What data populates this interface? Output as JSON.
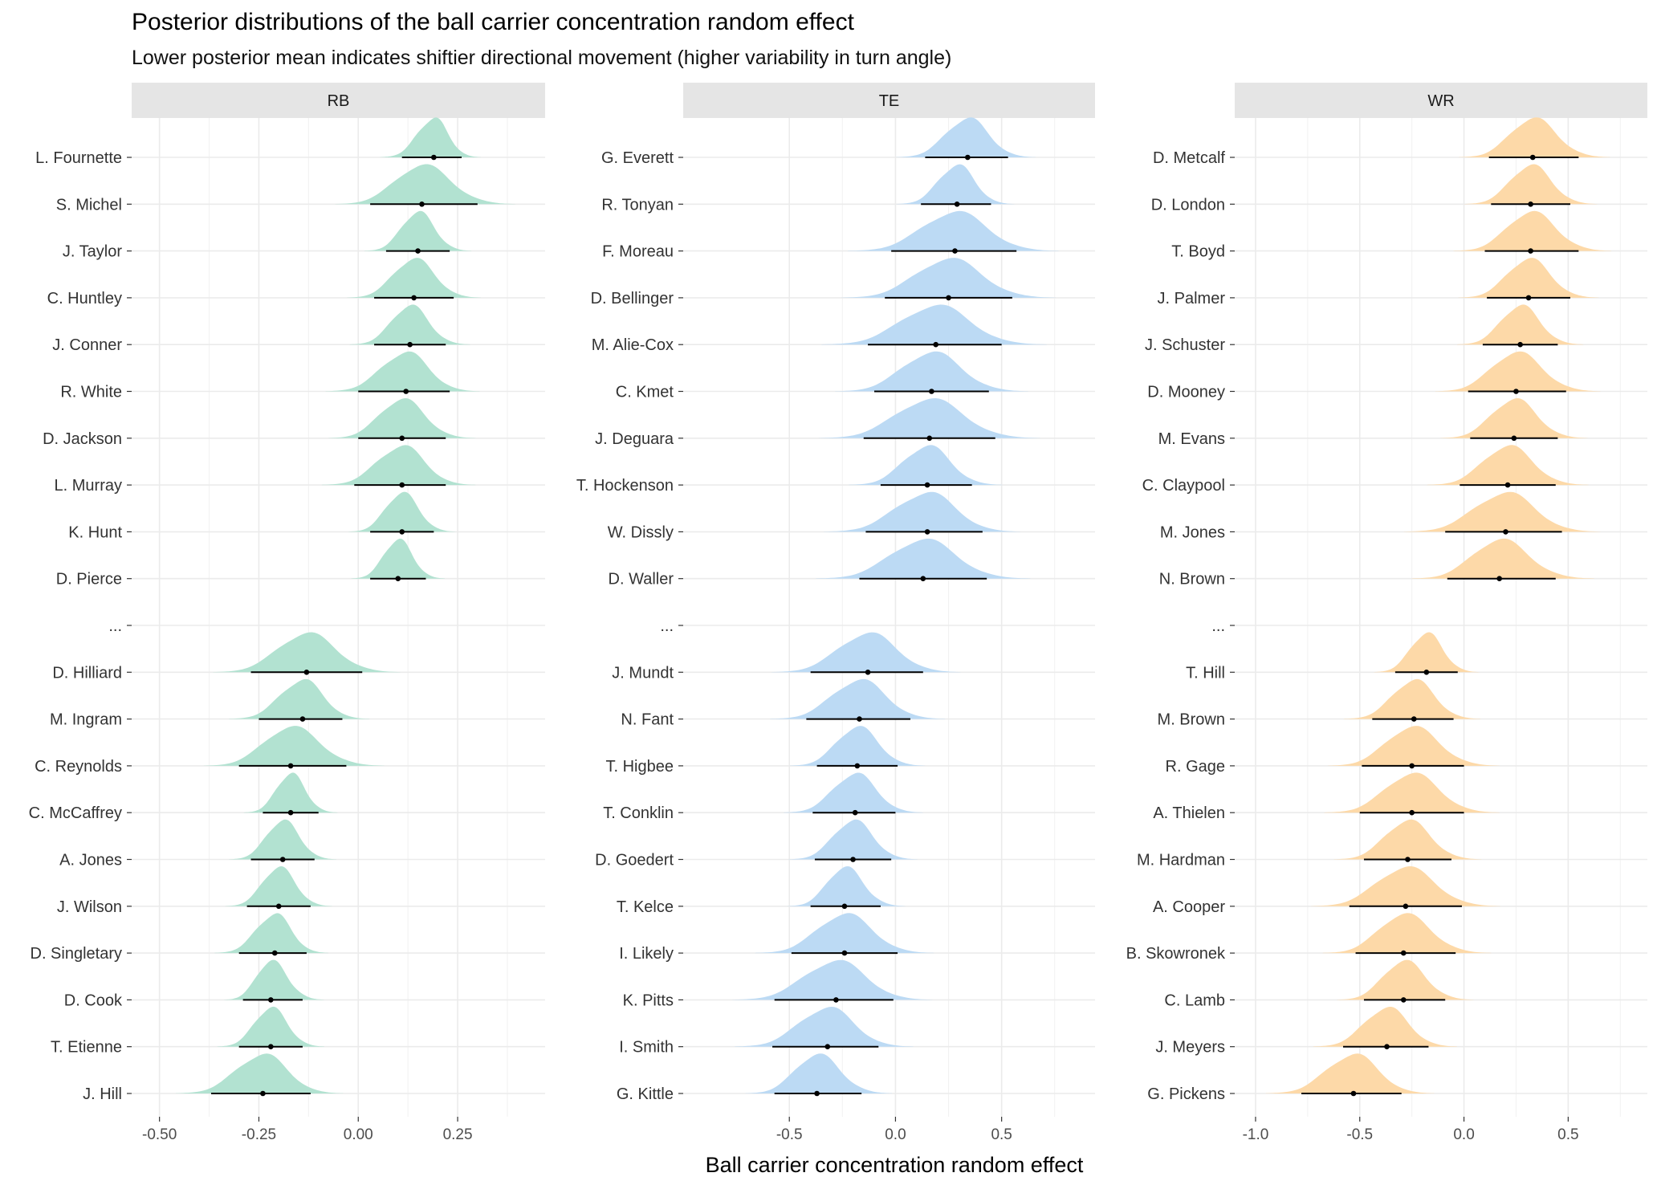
{
  "chart_data": {
    "type": "ridgeline",
    "title": "Posterior distributions of the ball carrier concentration random effect",
    "subtitle": "Lower posterior mean indicates shiftier directional movement (higher variability in turn angle)",
    "xlabel": "Ball carrier concentration random effect",
    "grid": true,
    "panels": [
      {
        "name": "RB",
        "color": "#b2e2d1",
        "xlim": [
          -0.57,
          0.47
        ],
        "xticks": [
          -0.5,
          -0.25,
          0.0,
          0.25
        ],
        "xtick_labels": [
          "-0.50",
          "-0.25",
          "0.00",
          "0.25"
        ],
        "rows": [
          {
            "label": "L. Fournette",
            "mean": 0.19,
            "lo": 0.11,
            "hi": 0.26
          },
          {
            "label": "S. Michel",
            "mean": 0.16,
            "lo": 0.03,
            "hi": 0.3
          },
          {
            "label": "J. Taylor",
            "mean": 0.15,
            "lo": 0.07,
            "hi": 0.23
          },
          {
            "label": "C. Huntley",
            "mean": 0.14,
            "lo": 0.04,
            "hi": 0.24
          },
          {
            "label": "J. Conner",
            "mean": 0.13,
            "lo": 0.04,
            "hi": 0.22
          },
          {
            "label": "R. White",
            "mean": 0.12,
            "lo": 0.0,
            "hi": 0.23
          },
          {
            "label": "D. Jackson",
            "mean": 0.11,
            "lo": 0.0,
            "hi": 0.22
          },
          {
            "label": "L. Murray",
            "mean": 0.11,
            "lo": -0.01,
            "hi": 0.22
          },
          {
            "label": "K. Hunt",
            "mean": 0.11,
            "lo": 0.03,
            "hi": 0.19
          },
          {
            "label": "D. Pierce",
            "mean": 0.1,
            "lo": 0.03,
            "hi": 0.17
          },
          {
            "label": "...",
            "gap": true
          },
          {
            "label": "D. Hilliard",
            "mean": -0.13,
            "lo": -0.27,
            "hi": 0.01
          },
          {
            "label": "M. Ingram",
            "mean": -0.14,
            "lo": -0.25,
            "hi": -0.04
          },
          {
            "label": "C. Reynolds",
            "mean": -0.17,
            "lo": -0.3,
            "hi": -0.03
          },
          {
            "label": "C. McCaffrey",
            "mean": -0.17,
            "lo": -0.24,
            "hi": -0.1
          },
          {
            "label": "A. Jones",
            "mean": -0.19,
            "lo": -0.27,
            "hi": -0.11
          },
          {
            "label": "J. Wilson",
            "mean": -0.2,
            "lo": -0.28,
            "hi": -0.12
          },
          {
            "label": "D. Singletary",
            "mean": -0.21,
            "lo": -0.3,
            "hi": -0.13
          },
          {
            "label": "D. Cook",
            "mean": -0.22,
            "lo": -0.29,
            "hi": -0.14
          },
          {
            "label": "T. Etienne",
            "mean": -0.22,
            "lo": -0.3,
            "hi": -0.14
          },
          {
            "label": "J. Hill",
            "mean": -0.24,
            "lo": -0.37,
            "hi": -0.12
          }
        ]
      },
      {
        "name": "TE",
        "color": "#bcdaf4",
        "xlim": [
          -1.0,
          0.94
        ],
        "xticks": [
          -0.5,
          0.0,
          0.5
        ],
        "xtick_labels": [
          "-0.5",
          "0.0",
          "0.5"
        ],
        "rows": [
          {
            "label": "G. Everett",
            "mean": 0.34,
            "lo": 0.14,
            "hi": 0.53
          },
          {
            "label": "R. Tonyan",
            "mean": 0.29,
            "lo": 0.12,
            "hi": 0.45
          },
          {
            "label": "F. Moreau",
            "mean": 0.28,
            "lo": -0.02,
            "hi": 0.57
          },
          {
            "label": "D. Bellinger",
            "mean": 0.25,
            "lo": -0.05,
            "hi": 0.55
          },
          {
            "label": "M. Alie-Cox",
            "mean": 0.19,
            "lo": -0.13,
            "hi": 0.5
          },
          {
            "label": "C. Kmet",
            "mean": 0.17,
            "lo": -0.1,
            "hi": 0.44
          },
          {
            "label": "J. Deguara",
            "mean": 0.16,
            "lo": -0.15,
            "hi": 0.47
          },
          {
            "label": "T. Hockenson",
            "mean": 0.15,
            "lo": -0.07,
            "hi": 0.36
          },
          {
            "label": "W. Dissly",
            "mean": 0.15,
            "lo": -0.14,
            "hi": 0.41
          },
          {
            "label": "D. Waller",
            "mean": 0.13,
            "lo": -0.17,
            "hi": 0.43
          },
          {
            "label": "...",
            "gap": true
          },
          {
            "label": "J. Mundt",
            "mean": -0.13,
            "lo": -0.4,
            "hi": 0.13
          },
          {
            "label": "N. Fant",
            "mean": -0.17,
            "lo": -0.42,
            "hi": 0.07
          },
          {
            "label": "T. Higbee",
            "mean": -0.18,
            "lo": -0.37,
            "hi": 0.01
          },
          {
            "label": "T. Conklin",
            "mean": -0.19,
            "lo": -0.39,
            "hi": 0.0
          },
          {
            "label": "D. Goedert",
            "mean": -0.2,
            "lo": -0.38,
            "hi": -0.02
          },
          {
            "label": "T. Kelce",
            "mean": -0.24,
            "lo": -0.4,
            "hi": -0.07
          },
          {
            "label": "I. Likely",
            "mean": -0.24,
            "lo": -0.49,
            "hi": 0.01
          },
          {
            "label": "K. Pitts",
            "mean": -0.28,
            "lo": -0.57,
            "hi": -0.01
          },
          {
            "label": "I. Smith",
            "mean": -0.32,
            "lo": -0.58,
            "hi": -0.08
          },
          {
            "label": "G. Kittle",
            "mean": -0.37,
            "lo": -0.57,
            "hi": -0.16
          }
        ]
      },
      {
        "name": "WR",
        "color": "#fdd9a8",
        "xlim": [
          -1.1,
          0.88
        ],
        "xticks": [
          -1.0,
          -0.5,
          0.0,
          0.5
        ],
        "xtick_labels": [
          "-1.0",
          "-0.5",
          "0.0",
          "0.5"
        ],
        "rows": [
          {
            "label": "D. Metcalf",
            "mean": 0.33,
            "lo": 0.12,
            "hi": 0.55
          },
          {
            "label": "D. London",
            "mean": 0.32,
            "lo": 0.13,
            "hi": 0.51
          },
          {
            "label": "T. Boyd",
            "mean": 0.32,
            "lo": 0.1,
            "hi": 0.55
          },
          {
            "label": "J. Palmer",
            "mean": 0.31,
            "lo": 0.11,
            "hi": 0.51
          },
          {
            "label": "J. Schuster",
            "mean": 0.27,
            "lo": 0.09,
            "hi": 0.45
          },
          {
            "label": "D. Mooney",
            "mean": 0.25,
            "lo": 0.02,
            "hi": 0.49
          },
          {
            "label": "M. Evans",
            "mean": 0.24,
            "lo": 0.03,
            "hi": 0.45
          },
          {
            "label": "C. Claypool",
            "mean": 0.21,
            "lo": -0.02,
            "hi": 0.44
          },
          {
            "label": "M. Jones",
            "mean": 0.2,
            "lo": -0.09,
            "hi": 0.47
          },
          {
            "label": "N. Brown",
            "mean": 0.17,
            "lo": -0.08,
            "hi": 0.44
          },
          {
            "label": "...",
            "gap": true
          },
          {
            "label": "T. Hill",
            "mean": -0.18,
            "lo": -0.33,
            "hi": -0.03
          },
          {
            "label": "M. Brown",
            "mean": -0.24,
            "lo": -0.44,
            "hi": -0.05
          },
          {
            "label": "R. Gage",
            "mean": -0.25,
            "lo": -0.49,
            "hi": 0.0
          },
          {
            "label": "A. Thielen",
            "mean": -0.25,
            "lo": -0.5,
            "hi": 0.0
          },
          {
            "label": "M. Hardman",
            "mean": -0.27,
            "lo": -0.48,
            "hi": -0.06
          },
          {
            "label": "A. Cooper",
            "mean": -0.28,
            "lo": -0.55,
            "hi": -0.01
          },
          {
            "label": "B. Skowronek",
            "mean": -0.29,
            "lo": -0.52,
            "hi": -0.04
          },
          {
            "label": "C. Lamb",
            "mean": -0.29,
            "lo": -0.48,
            "hi": -0.09
          },
          {
            "label": "J. Meyers",
            "mean": -0.37,
            "lo": -0.58,
            "hi": -0.17
          },
          {
            "label": "G. Pickens",
            "mean": -0.53,
            "lo": -0.78,
            "hi": -0.3
          }
        ]
      }
    ]
  }
}
